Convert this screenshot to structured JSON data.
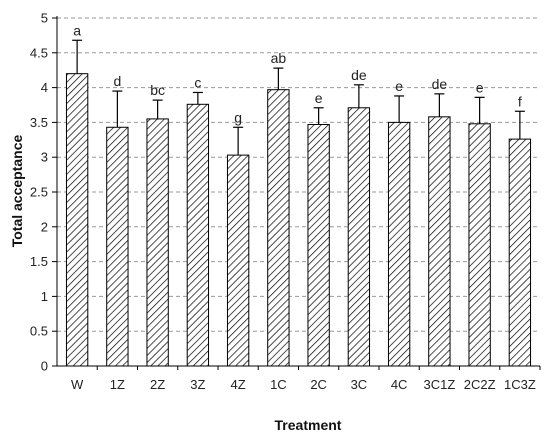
{
  "chart_data": {
    "type": "bar",
    "xlabel": "Treatment",
    "ylabel": "Total acceptance",
    "ylim": [
      0,
      5
    ],
    "ytick_step": 0.5,
    "yticks": [
      "0",
      "0.5",
      "1",
      "1.5",
      "2",
      "2.5",
      "3",
      "3.5",
      "4",
      "4.5",
      "5"
    ],
    "grid": "horizontal dashed",
    "categories": [
      "W",
      "1Z",
      "2Z",
      "3Z",
      "4Z",
      "1C",
      "2C",
      "3C",
      "4C",
      "3C1Z",
      "2C2Z",
      "1C3Z"
    ],
    "values": [
      4.2,
      3.43,
      3.55,
      3.76,
      3.03,
      3.97,
      3.47,
      3.71,
      3.5,
      3.58,
      3.48,
      3.26
    ],
    "error_upper": [
      0.48,
      0.52,
      0.27,
      0.17,
      0.4,
      0.31,
      0.24,
      0.33,
      0.38,
      0.33,
      0.38,
      0.4
    ],
    "significance_letters": [
      "a",
      "d",
      "bc",
      "c",
      "g",
      "ab",
      "e",
      "de",
      "e",
      "de",
      "e",
      "f"
    ],
    "bar_pattern": "diagonal hatch",
    "colors": {
      "bar_fill": "#ffffff",
      "bar_hatch": "#000000",
      "grid": "#9a9a9a",
      "axis": "#000000"
    }
  }
}
